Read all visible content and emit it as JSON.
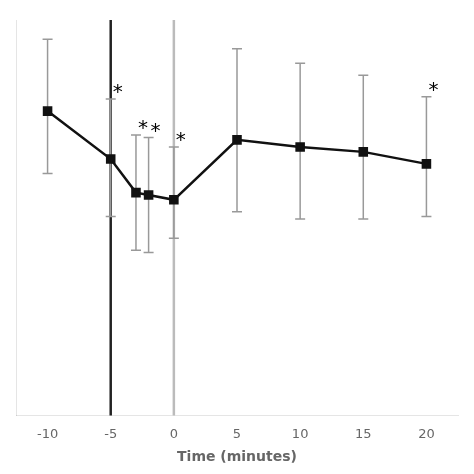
{
  "chart_data": {
    "type": "line",
    "xlabel": "Time (minutes)",
    "x": [
      -10,
      -5,
      -3,
      -2,
      0,
      5,
      10,
      15,
      20
    ],
    "values": [
      0.72,
      0.52,
      0.38,
      0.37,
      0.35,
      0.6,
      0.57,
      0.55,
      0.5
    ],
    "error_upper": [
      0.3,
      0.25,
      0.24,
      0.24,
      0.22,
      0.38,
      0.35,
      0.32,
      0.28
    ],
    "error_lower": [
      0.26,
      0.24,
      0.24,
      0.24,
      0.16,
      0.3,
      0.3,
      0.28,
      0.22
    ],
    "color": "#111111",
    "marker": "square",
    "xlim": [
      -12.5,
      22.5
    ],
    "xticks": [
      -10,
      -5,
      0,
      5,
      10,
      15,
      20
    ],
    "ylim": [
      -0.55,
      1.1
    ],
    "tick_labels": "x",
    "grid": false,
    "vlines": [
      {
        "x": -5,
        "color": "#222222"
      },
      {
        "x": 0,
        "color": "#bbbbbb"
      }
    ],
    "annotations": [
      {
        "x": -5,
        "text": "*"
      },
      {
        "x": -3,
        "text": "*"
      },
      {
        "x": -2,
        "text": "*"
      },
      {
        "x": 0,
        "text": "*"
      },
      {
        "x": 20,
        "text": "*"
      }
    ]
  }
}
